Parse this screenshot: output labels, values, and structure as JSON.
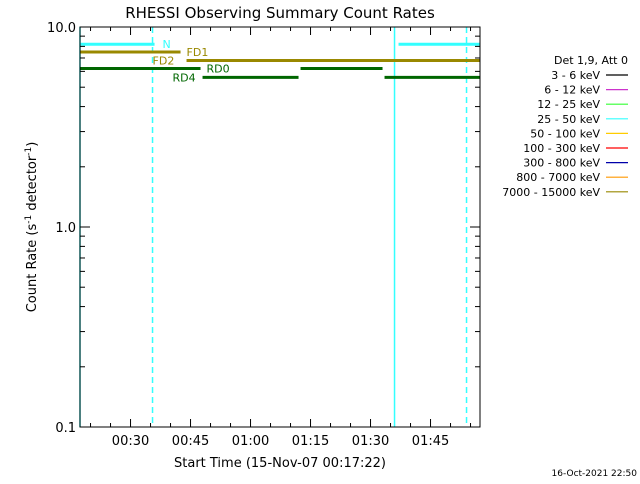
{
  "chart_data": {
    "type": "line",
    "title": "RHESSI Observing Summary Count Rates",
    "xlabel": "Start Time (15-Nov-07 00:17:22)",
    "ylabel": "Count Rate (s⁻¹ detector⁻¹)",
    "ylabel_main": "Count Rate (s",
    "ylabel_sup1": "-1",
    "ylabel_mid": " detector",
    "ylabel_sup2": "-1",
    "ylabel_end": ")",
    "yscale": "log",
    "ylim": [
      0.1,
      10.0
    ],
    "xlim": [
      "00:17:22",
      "01:57:22"
    ],
    "x_ticks": [
      "00:30",
      "00:45",
      "01:00",
      "01:15",
      "01:30",
      "01:45"
    ],
    "y_ticks": [
      "0.1",
      "1.0",
      "10.0"
    ],
    "timestamp": "16-Oct-2021 22:50",
    "legend": {
      "header": "Det 1,9, Att 0",
      "placement": "right",
      "entries": [
        {
          "label": "3 - 6 keV",
          "color": "#000000"
        },
        {
          "label": "6 - 12 keV",
          "color": "#cc33cc"
        },
        {
          "label": "12 - 25 keV",
          "color": "#33ff33"
        },
        {
          "label": "25 - 50 keV",
          "color": "#33ffff"
        },
        {
          "label": "50 - 100 keV",
          "color": "#ffcc00"
        },
        {
          "label": "100 - 300 keV",
          "color": "#ff0000"
        },
        {
          "label": "300 - 800 keV",
          "color": "#0000aa"
        },
        {
          "label": "800 - 7000 keV",
          "color": "#ff9900"
        },
        {
          "label": "7000 - 15000 keV",
          "color": "#998800"
        }
      ]
    },
    "flag_series": [
      {
        "name": "N",
        "color": "#33ffff",
        "y": 8.2,
        "segments": [
          [
            "00:17:22",
            "00:36:00"
          ],
          [
            "01:37:00",
            "01:57:22"
          ]
        ],
        "label_at": "00:38:00"
      },
      {
        "name": "FD1",
        "color": "#998800",
        "y": 7.5,
        "segments": [
          [
            "00:17:22",
            "00:42:30"
          ]
        ],
        "label_at": "00:44:00"
      },
      {
        "name": "FD2",
        "color": "#998800",
        "y": 6.8,
        "segments": [
          [
            "00:44:00",
            "01:57:22"
          ]
        ],
        "label_at": "00:35:30"
      },
      {
        "name": "RD0",
        "color": "#006600",
        "y": 6.2,
        "segments": [
          [
            "00:17:22",
            "00:47:30"
          ],
          [
            "01:12:30",
            "01:33:00"
          ]
        ],
        "label_at": "00:49:00"
      },
      {
        "name": "RD4",
        "color": "#006600",
        "y": 5.6,
        "segments": [
          [
            "00:48:00",
            "01:12:00"
          ],
          [
            "01:33:30",
            "01:57:22"
          ]
        ],
        "label_at": "00:40:30"
      }
    ],
    "vertical_markers": [
      {
        "t": "00:17:22",
        "style": "solid",
        "color": "#33ffff"
      },
      {
        "t": "00:35:30",
        "style": "dashed",
        "color": "#33ffff"
      },
      {
        "t": "01:36:00",
        "style": "solid",
        "color": "#33ffff"
      },
      {
        "t": "01:54:00",
        "style": "dashed",
        "color": "#33ffff"
      }
    ]
  }
}
